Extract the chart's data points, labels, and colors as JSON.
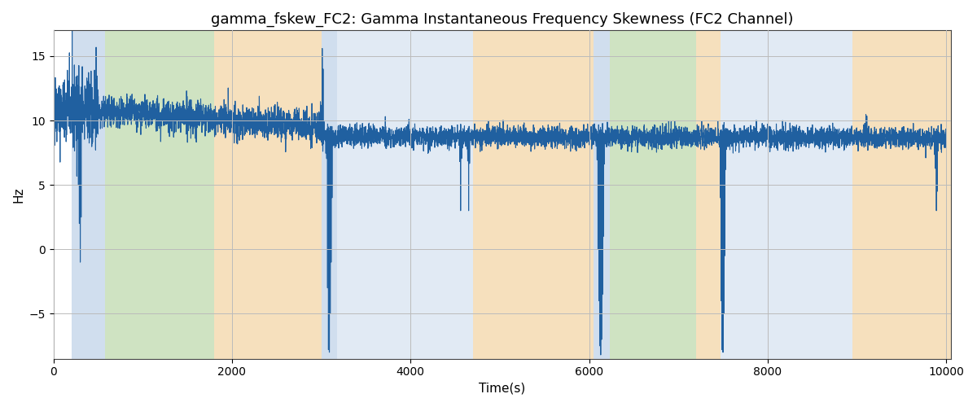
{
  "title": "gamma_fskew_FC2: Gamma Instantaneous Frequency Skewness (FC2 Channel)",
  "xlabel": "Time(s)",
  "ylabel": "Hz",
  "xlim": [
    0,
    10050
  ],
  "ylim": [
    -8.5,
    17
  ],
  "yticks": [
    -5,
    0,
    5,
    10,
    15
  ],
  "xticks": [
    0,
    2000,
    4000,
    6000,
    8000,
    10000
  ],
  "line_color": "#2060a0",
  "line_width": 0.8,
  "background_color": "#ffffff",
  "grid_color": "#bbbbbb",
  "bands": [
    {
      "xmin": 200,
      "xmax": 580,
      "color": "#aac4e0",
      "alpha": 0.55
    },
    {
      "xmin": 580,
      "xmax": 1800,
      "color": "#a8cc90",
      "alpha": 0.55
    },
    {
      "xmin": 1800,
      "xmax": 3000,
      "color": "#f0c888",
      "alpha": 0.55
    },
    {
      "xmin": 3000,
      "xmax": 3180,
      "color": "#aac4e0",
      "alpha": 0.55
    },
    {
      "xmin": 3180,
      "xmax": 4700,
      "color": "#aac4e0",
      "alpha": 0.35
    },
    {
      "xmin": 4700,
      "xmax": 6050,
      "color": "#f0c888",
      "alpha": 0.55
    },
    {
      "xmin": 6050,
      "xmax": 6230,
      "color": "#aac4e0",
      "alpha": 0.55
    },
    {
      "xmin": 6230,
      "xmax": 7200,
      "color": "#a8cc90",
      "alpha": 0.55
    },
    {
      "xmin": 7200,
      "xmax": 7470,
      "color": "#f0c888",
      "alpha": 0.55
    },
    {
      "xmin": 7470,
      "xmax": 8950,
      "color": "#aac4e0",
      "alpha": 0.35
    },
    {
      "xmin": 8950,
      "xmax": 10100,
      "color": "#f0c888",
      "alpha": 0.55
    }
  ],
  "seed": 42,
  "n_points": 10000,
  "title_fontsize": 13
}
